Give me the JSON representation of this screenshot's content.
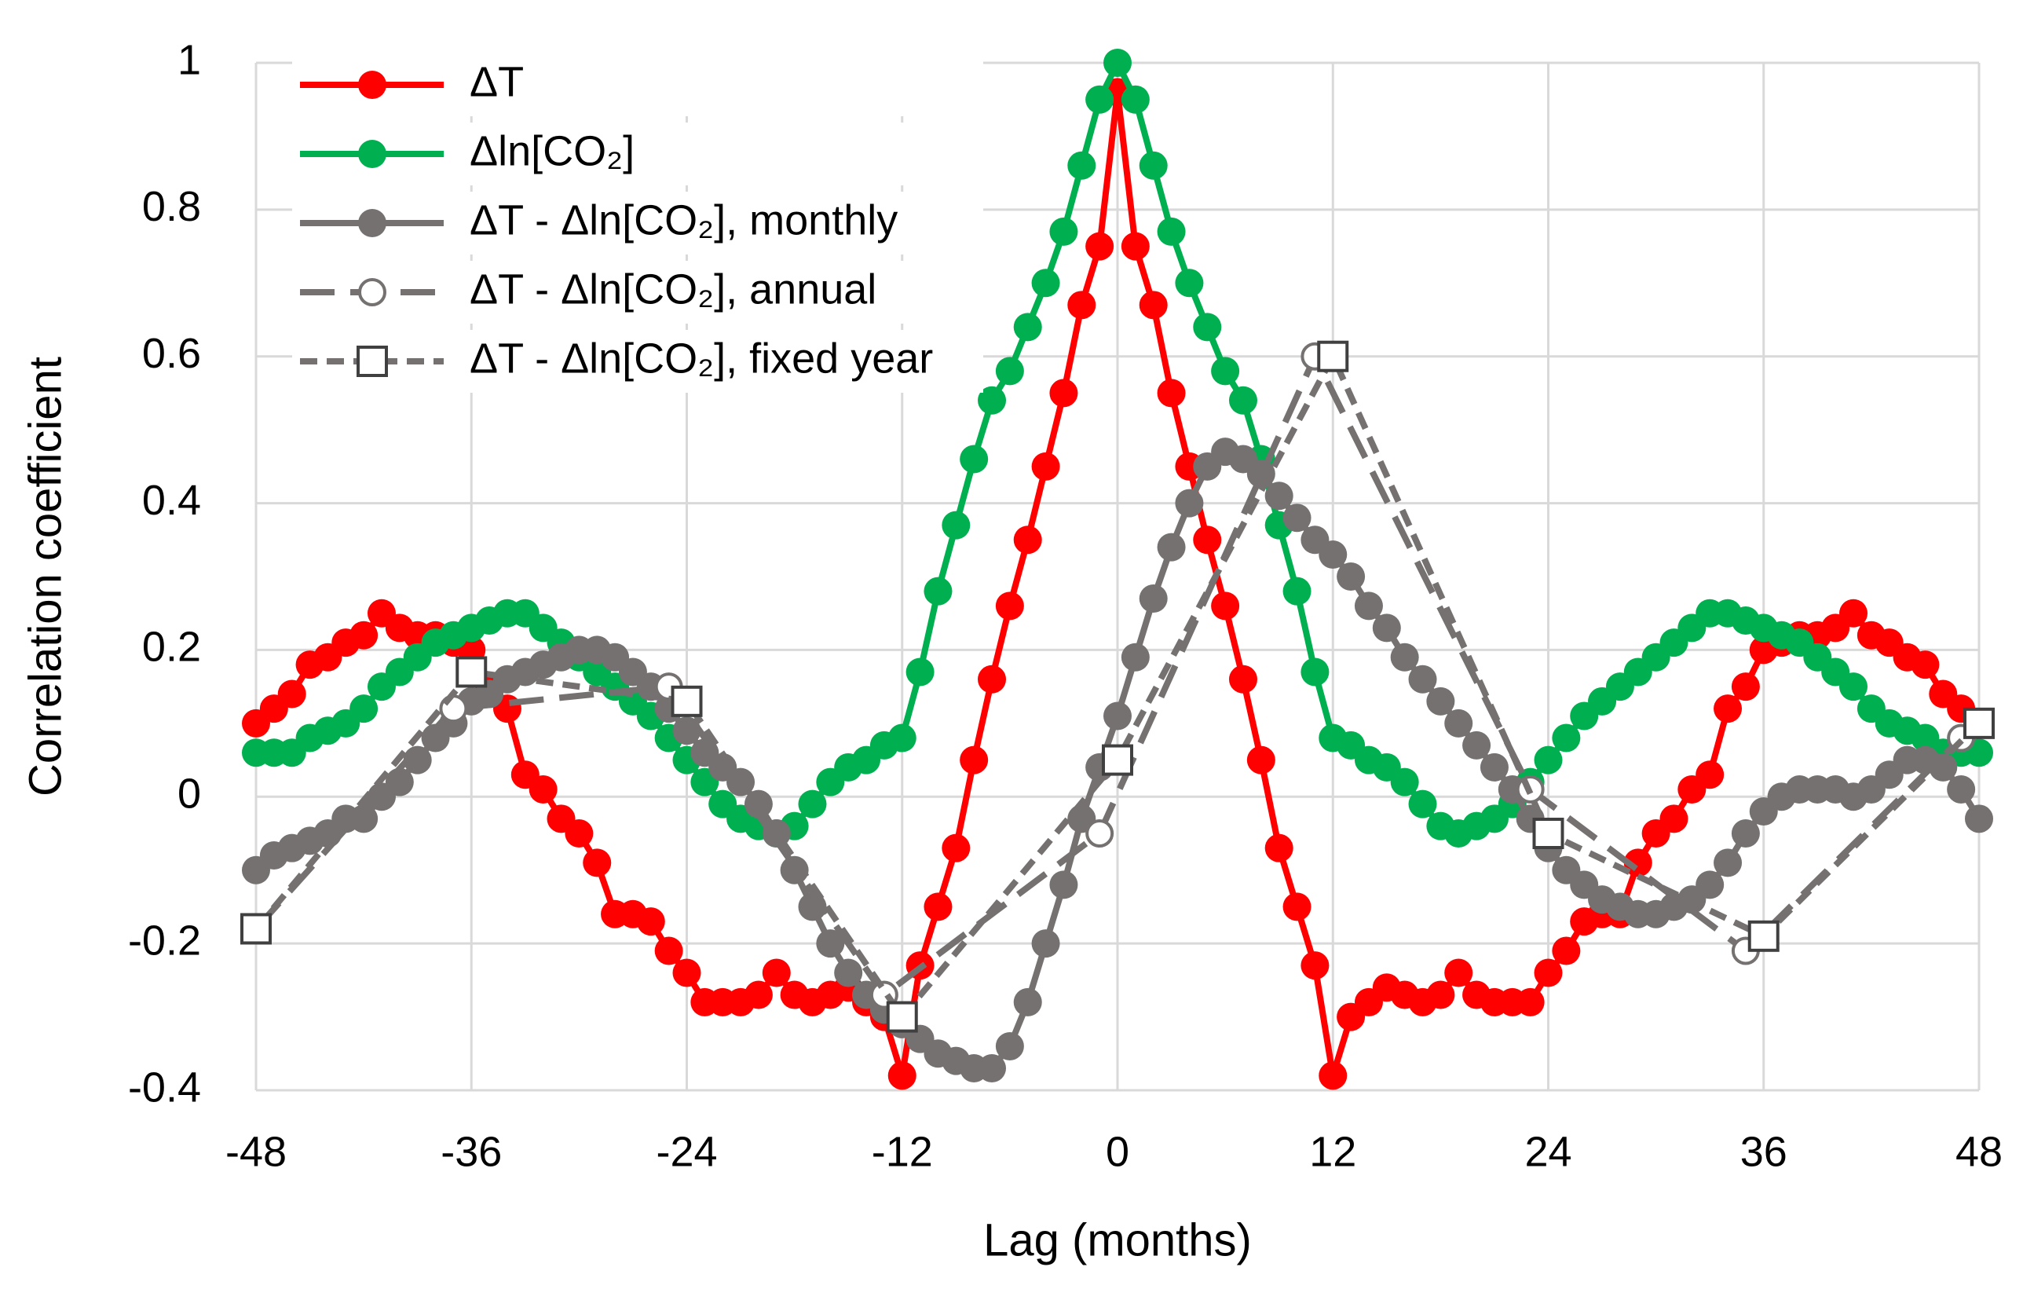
{
  "chart_data": {
    "type": "line",
    "xlabel": "Lag (months)",
    "ylabel": "Correlation coefficient",
    "x": [
      -48,
      -47,
      -46,
      -45,
      -44,
      -43,
      -42,
      -41,
      -40,
      -39,
      -38,
      -37,
      -36,
      -35,
      -34,
      -33,
      -32,
      -31,
      -30,
      -29,
      -28,
      -27,
      -26,
      -25,
      -24,
      -23,
      -22,
      -21,
      -20,
      -19,
      -18,
      -17,
      -16,
      -15,
      -14,
      -13,
      -12,
      -11,
      -10,
      -9,
      -8,
      -7,
      -6,
      -5,
      -4,
      -3,
      -2,
      -1,
      0,
      1,
      2,
      3,
      4,
      5,
      6,
      7,
      8,
      9,
      10,
      11,
      12,
      13,
      14,
      15,
      16,
      17,
      18,
      19,
      20,
      21,
      22,
      23,
      24,
      25,
      26,
      27,
      28,
      29,
      30,
      31,
      32,
      33,
      34,
      35,
      36,
      37,
      38,
      39,
      40,
      41,
      42,
      43,
      44,
      45,
      46,
      47,
      48
    ],
    "xlim": [
      -48,
      48
    ],
    "xticks": [
      -48,
      -36,
      -24,
      -12,
      0,
      12,
      24,
      36,
      48
    ],
    "ylim": [
      -0.4,
      1
    ],
    "yticks": [
      -0.4,
      -0.2,
      0,
      0.2,
      0.4,
      0.6,
      0.8,
      1
    ],
    "grid": true,
    "legend": "upper left",
    "series": [
      {
        "name": "ΔT",
        "color": "#ff0000",
        "line_style": "solid",
        "marker": "circle",
        "filled": true,
        "values": [
          0.1,
          0.12,
          0.14,
          0.18,
          0.19,
          0.21,
          0.22,
          0.25,
          0.23,
          0.22,
          0.22,
          0.21,
          0.2,
          0.15,
          0.12,
          0.03,
          0.01,
          -0.03,
          -0.05,
          -0.09,
          -0.16,
          -0.16,
          -0.17,
          -0.21,
          -0.24,
          -0.28,
          -0.28,
          -0.28,
          -0.27,
          -0.24,
          -0.27,
          -0.28,
          -0.27,
          -0.26,
          -0.28,
          -0.3,
          -0.38,
          -0.23,
          -0.15,
          -0.07,
          0.05,
          0.16,
          0.26,
          0.35,
          0.45,
          0.55,
          0.67,
          0.75,
          0.96,
          0.75,
          0.67,
          0.55,
          0.45,
          0.35,
          0.26,
          0.16,
          0.05,
          -0.07,
          -0.15,
          -0.23,
          -0.38,
          -0.3,
          -0.28,
          -0.26,
          -0.27,
          -0.28,
          -0.27,
          -0.24,
          -0.27,
          -0.28,
          -0.28,
          -0.28,
          -0.24,
          -0.21,
          -0.17,
          -0.16,
          -0.16,
          -0.09,
          -0.05,
          -0.03,
          0.01,
          0.03,
          0.12,
          0.15,
          0.2,
          0.21,
          0.22,
          0.22,
          0.23,
          0.25,
          0.22,
          0.21,
          0.19,
          0.18,
          0.14,
          0.12,
          0.1
        ]
      },
      {
        "name": "Δln[CO₂]",
        "color": "#00b050",
        "line_style": "solid",
        "marker": "circle",
        "filled": true,
        "values": [
          0.06,
          0.06,
          0.06,
          0.08,
          0.09,
          0.1,
          0.12,
          0.15,
          0.17,
          0.19,
          0.21,
          0.22,
          0.23,
          0.24,
          0.25,
          0.25,
          0.23,
          0.21,
          0.19,
          0.17,
          0.15,
          0.13,
          0.11,
          0.08,
          0.05,
          0.02,
          -0.01,
          -0.03,
          -0.04,
          -0.05,
          -0.04,
          -0.01,
          0.02,
          0.04,
          0.05,
          0.07,
          0.08,
          0.17,
          0.28,
          0.37,
          0.46,
          0.54,
          0.58,
          0.64,
          0.7,
          0.77,
          0.86,
          0.95,
          1.0,
          0.95,
          0.86,
          0.77,
          0.7,
          0.64,
          0.58,
          0.54,
          0.46,
          0.37,
          0.28,
          0.17,
          0.08,
          0.07,
          0.05,
          0.04,
          0.02,
          -0.01,
          -0.04,
          -0.05,
          -0.04,
          -0.03,
          -0.01,
          0.02,
          0.05,
          0.08,
          0.11,
          0.13,
          0.15,
          0.17,
          0.19,
          0.21,
          0.23,
          0.25,
          0.25,
          0.24,
          0.23,
          0.22,
          0.21,
          0.19,
          0.17,
          0.15,
          0.12,
          0.1,
          0.09,
          0.08,
          0.06,
          0.06,
          0.06
        ]
      },
      {
        "name": "ΔT - Δln[CO₂], monthly",
        "color": "#767171",
        "line_style": "solid",
        "marker": "circle",
        "filled": true,
        "values": [
          -0.1,
          -0.08,
          -0.07,
          -0.06,
          -0.05,
          -0.03,
          -0.03,
          0.0,
          0.02,
          0.05,
          0.08,
          0.1,
          0.13,
          0.14,
          0.16,
          0.17,
          0.18,
          0.19,
          0.2,
          0.2,
          0.19,
          0.17,
          0.15,
          0.12,
          0.09,
          0.06,
          0.04,
          0.02,
          -0.01,
          -0.05,
          -0.1,
          -0.15,
          -0.2,
          -0.24,
          -0.27,
          -0.29,
          -0.31,
          -0.33,
          -0.35,
          -0.36,
          -0.37,
          -0.37,
          -0.34,
          -0.28,
          -0.2,
          -0.12,
          -0.03,
          0.04,
          0.11,
          0.19,
          0.27,
          0.34,
          0.4,
          0.45,
          0.47,
          0.46,
          0.44,
          0.41,
          0.38,
          0.35,
          0.33,
          0.3,
          0.26,
          0.23,
          0.19,
          0.16,
          0.13,
          0.1,
          0.07,
          0.04,
          0.01,
          -0.03,
          -0.07,
          -0.1,
          -0.12,
          -0.14,
          -0.15,
          -0.16,
          -0.16,
          -0.15,
          -0.14,
          -0.12,
          -0.09,
          -0.05,
          -0.02,
          0.0,
          0.01,
          0.01,
          0.01,
          0.0,
          0.01,
          0.03,
          0.05,
          0.05,
          0.04,
          0.01,
          -0.03
        ]
      },
      {
        "name": "ΔT - Δln[CO₂], annual",
        "color": "#767171",
        "line_style": "dashed",
        "marker": "circle",
        "filled": false,
        "x": [
          -48,
          -37,
          -25,
          -13,
          -1,
          11,
          23,
          35,
          47
        ],
        "values": [
          -0.18,
          0.12,
          0.15,
          -0.27,
          -0.05,
          0.6,
          0.01,
          -0.21,
          0.08
        ]
      },
      {
        "name": "ΔT - Δln[CO₂], fixed year",
        "color": "#767171",
        "line_style": "dotted",
        "marker": "square",
        "filled": false,
        "x": [
          -48,
          -36,
          -24,
          -12,
          0,
          12,
          24,
          36,
          48
        ],
        "values": [
          -0.18,
          0.17,
          0.13,
          -0.3,
          0.05,
          0.6,
          -0.05,
          -0.19,
          0.1
        ]
      }
    ]
  }
}
